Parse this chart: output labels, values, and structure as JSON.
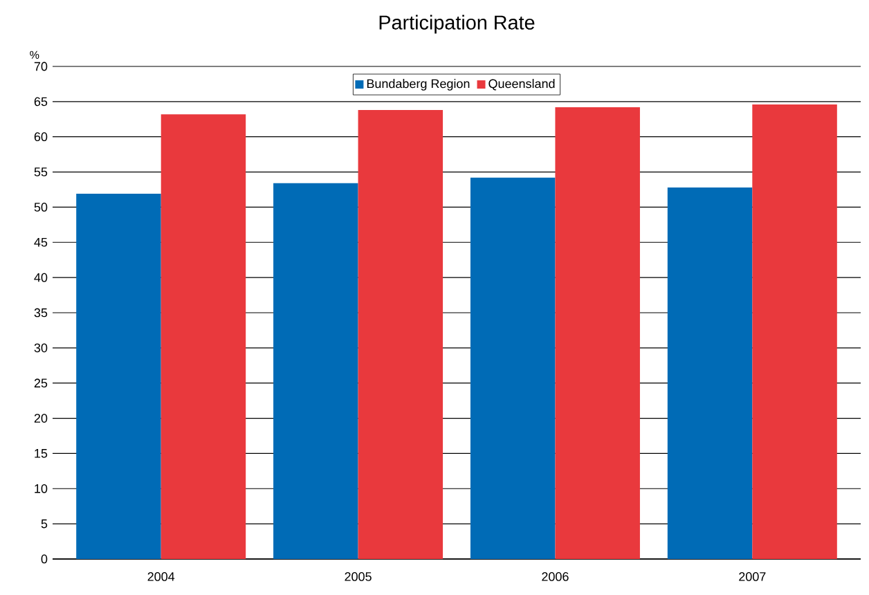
{
  "chart_data": {
    "type": "bar",
    "title": "Participation Rate",
    "ylabel": "%",
    "categories": [
      "2004",
      "2005",
      "2006",
      "2007"
    ],
    "series": [
      {
        "name": "Bundaberg Region",
        "color": "#006bb6",
        "values": [
          51.9,
          53.4,
          54.2,
          52.8
        ]
      },
      {
        "name": "Queensland",
        "color": "#e9393d",
        "values": [
          63.2,
          63.8,
          64.2,
          64.6
        ]
      }
    ],
    "ylim": [
      0,
      70
    ],
    "yticks": [
      0,
      5,
      10,
      15,
      20,
      25,
      30,
      35,
      40,
      45,
      50,
      55,
      60,
      65,
      70
    ],
    "grid": "y",
    "legend": "top"
  }
}
